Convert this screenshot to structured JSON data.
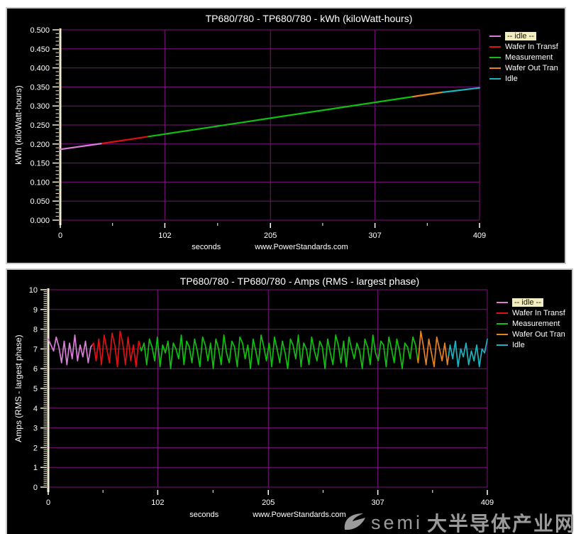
{
  "watermark": {
    "brand": "semi",
    "cn": "大半导体产业网"
  },
  "chart_data": [
    {
      "type": "line",
      "title": "TP680/780 - TP680/780 - kWh (kiloWatt-hours)",
      "ylabel": "kWh (kiloWatt-hours)",
      "xlabel": "seconds",
      "footer": "www.PowerStandards.com",
      "xlim": [
        0,
        409
      ],
      "ylim": [
        0,
        0.5
      ],
      "xticks": {
        "values": [
          0,
          102,
          205,
          307,
          409
        ],
        "labels": [
          "0",
          "102",
          "205",
          "307",
          "409"
        ],
        "minor": [
          51,
          153.5,
          256,
          358
        ]
      },
      "yticks": {
        "values": [
          0,
          0.05,
          0.1,
          0.15,
          0.2,
          0.25,
          0.3,
          0.35,
          0.4,
          0.45,
          0.5
        ],
        "labels": [
          "0.000",
          "0.050",
          "0.100",
          "0.150",
          "0.200",
          "0.250",
          "0.300",
          "0.350",
          "0.400",
          "0.450",
          "0.500"
        ],
        "minor_step": 0.01
      },
      "grid": true,
      "grid_color": "#7d107d",
      "axis_color": "#f2ecce",
      "line_width": 2.2,
      "legend_position": "right",
      "phases": [
        {
          "name": "-- idle --",
          "color": "#d97dd9",
          "t": [
            0,
            41
          ],
          "highlight": true
        },
        {
          "name": "Wafer In Transf",
          "color": "#dd1111",
          "t": [
            41,
            86
          ],
          "highlight": false
        },
        {
          "name": "Measurement",
          "color": "#0fc00f",
          "t": [
            86,
            344
          ],
          "highlight": false
        },
        {
          "name": "Wafer Out Tran",
          "color": "#e8821e",
          "t": [
            344,
            373
          ],
          "highlight": false
        },
        {
          "name": "Idle",
          "color": "#1ab4c0",
          "t": [
            373,
            409
          ],
          "highlight": false
        }
      ],
      "series": {
        "kind": "breakpoints",
        "points": [
          [
            0,
            0.186
          ],
          [
            41,
            0.2015
          ],
          [
            86,
            0.2195
          ],
          [
            344,
            0.3245
          ],
          [
            373,
            0.336
          ],
          [
            409,
            0.3475
          ]
        ]
      }
    },
    {
      "type": "line",
      "title": "TP680/780 - TP680/780 - Amps (RMS - largest phase)",
      "ylabel": "Amps (RMS - largest phase)",
      "xlabel": "seconds",
      "footer": "www.PowerStandards.com",
      "xlim": [
        0,
        409
      ],
      "ylim": [
        0,
        10
      ],
      "xticks": {
        "values": [
          0,
          102,
          205,
          307,
          409
        ],
        "labels": [
          "0",
          "102",
          "205",
          "307",
          "409"
        ],
        "minor": [
          51,
          153.5,
          256,
          358
        ]
      },
      "yticks": {
        "values": [
          0,
          1,
          2,
          3,
          4,
          5,
          6,
          7,
          8,
          9,
          10
        ],
        "labels": [
          "0",
          "1",
          "2",
          "3",
          "4",
          "5",
          "6",
          "7",
          "8",
          "9",
          "10"
        ],
        "minor_step": 0.1
      },
      "grid": true,
      "grid_color": "#7d107d",
      "axis_color": "#f2ecce",
      "line_width": 1.7,
      "legend_position": "right",
      "phases": [
        {
          "name": "-- idle --",
          "color": "#d97dd9",
          "t": [
            0,
            41
          ],
          "highlight": true
        },
        {
          "name": "Wafer In Transf",
          "color": "#dd1111",
          "t": [
            41,
            86
          ],
          "highlight": false
        },
        {
          "name": "Measurement",
          "color": "#0fc00f",
          "t": [
            86,
            344
          ],
          "highlight": false
        },
        {
          "name": "Wafer Out Tran",
          "color": "#e8821e",
          "t": [
            344,
            373
          ],
          "highlight": false
        },
        {
          "name": "Idle",
          "color": "#1ab4c0",
          "t": [
            373,
            409
          ],
          "highlight": false
        }
      ],
      "series": {
        "kind": "sampled",
        "t_end": 409,
        "values": [
          7.5,
          7.2,
          6.9,
          7.6,
          7.1,
          6.3,
          7.4,
          6.2,
          7.3,
          6.5,
          7.7,
          6.4,
          7.2,
          6.6,
          7.4,
          6.3,
          7.1,
          7.3,
          6.4,
          7.5,
          6.2,
          7.7,
          7.0,
          6.3,
          7.8,
          7.2,
          6.1,
          7.9,
          7.3,
          6.2,
          7.6,
          6.4,
          7.2,
          6.1,
          7.4,
          6.9,
          7.3,
          6.2,
          7.5,
          7.1,
          6.4,
          7.6,
          6.1,
          7.2,
          6.8,
          7.4,
          6.0,
          7.3,
          7.0,
          6.5,
          7.7,
          6.2,
          7.4,
          7.1,
          6.3,
          7.5,
          6.9,
          6.1,
          7.6,
          7.2,
          6.4,
          7.3,
          6.0,
          7.5,
          7.0,
          6.2,
          7.7,
          6.8,
          6.3,
          7.4,
          7.1,
          6.1,
          7.6,
          7.3,
          6.5,
          7.2,
          6.0,
          7.5,
          6.9,
          6.2,
          7.7,
          7.1,
          6.4,
          7.3,
          6.1,
          7.6,
          7.0,
          6.3,
          7.4,
          6.8,
          6.0,
          7.5,
          7.2,
          6.5,
          7.7,
          6.1,
          7.3,
          7.0,
          6.2,
          7.6,
          6.9,
          6.4,
          7.4,
          7.1,
          6.0,
          7.5,
          6.8,
          6.2,
          7.7,
          7.2,
          6.3,
          7.4,
          6.1,
          7.6,
          7.0,
          6.5,
          7.3,
          6.9,
          6.0,
          7.5,
          7.1,
          6.2,
          7.7,
          6.8,
          6.4,
          7.4,
          7.2,
          6.1,
          7.6,
          7.0,
          6.3,
          7.5,
          6.9,
          6.0,
          7.3,
          7.1,
          6.5,
          7.6,
          7.2,
          6.3,
          7.9,
          7.1,
          6.2,
          7.5,
          6.8,
          6.1,
          7.6,
          7.0,
          6.4,
          7.3,
          6.2,
          7.2,
          6.5,
          7.4,
          6.1,
          7.0,
          6.6,
          7.3,
          6.2,
          6.9,
          6.4,
          7.2,
          6.1,
          7.0,
          6.8,
          7.5
        ]
      }
    }
  ]
}
